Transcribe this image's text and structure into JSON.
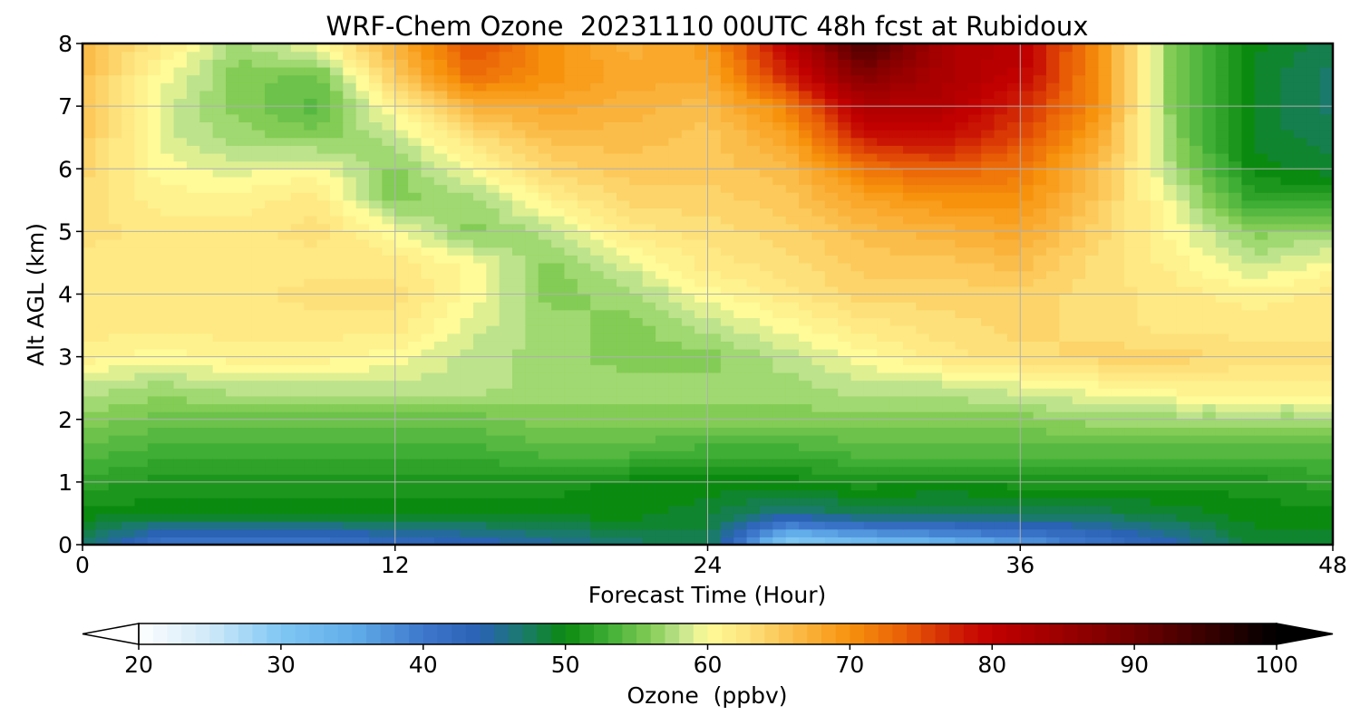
{
  "chart_data": {
    "type": "heatmap",
    "title": "WRF-Chem Ozone  20231110 00UTC 48h fcst at Rubidoux",
    "xlabel": "Forecast Time (Hour)",
    "ylabel": "Alt AGL (km)",
    "xlim": [
      0,
      48
    ],
    "ylim": [
      0,
      8
    ],
    "xticks": [
      0,
      12,
      24,
      36,
      48
    ],
    "yticks": [
      0,
      1,
      2,
      3,
      4,
      5,
      6,
      7,
      8
    ],
    "grid": true,
    "x": [
      0,
      3,
      6,
      9,
      12,
      15,
      18,
      21,
      24,
      27,
      30,
      33,
      36,
      39,
      42,
      45,
      48
    ],
    "y": [
      0,
      0.5,
      1,
      1.5,
      2,
      2.5,
      3,
      3.5,
      4,
      4.5,
      5,
      5.5,
      6,
      6.5,
      7,
      7.5,
      8
    ],
    "z": [
      [
        47,
        40,
        40,
        40,
        42,
        43,
        45,
        47,
        48,
        28,
        31,
        33,
        36,
        40,
        44,
        49,
        49
      ],
      [
        50,
        50,
        50,
        50,
        50,
        50,
        50,
        50,
        49,
        46,
        48,
        48,
        48,
        48,
        49,
        50,
        50
      ],
      [
        52,
        51,
        51,
        51,
        51,
        51,
        51,
        50,
        50,
        50,
        51,
        50,
        51,
        51,
        51,
        51,
        52
      ],
      [
        54,
        53,
        53,
        53,
        53,
        53,
        54,
        54,
        53,
        53,
        54,
        54,
        54,
        54,
        54,
        54,
        54
      ],
      [
        56,
        55,
        55,
        55,
        55,
        55,
        56,
        56,
        56,
        56,
        56,
        56,
        56,
        57,
        57,
        57,
        57
      ],
      [
        58,
        57,
        58,
        58,
        58,
        58,
        57,
        57,
        57,
        57,
        58,
        58,
        59,
        60,
        61,
        61,
        61
      ],
      [
        61,
        60,
        61,
        61,
        60,
        58,
        57,
        56,
        56,
        58,
        60,
        62,
        63,
        64,
        64,
        63,
        63
      ],
      [
        62,
        62,
        62,
        62,
        62,
        59,
        57,
        56,
        58,
        60,
        62,
        63,
        64,
        63,
        62,
        62,
        62
      ],
      [
        62,
        62,
        62,
        63,
        63,
        60,
        56,
        57,
        60,
        62,
        64,
        64,
        64,
        63,
        62,
        61,
        62
      ],
      [
        62,
        62,
        62,
        62,
        62,
        60,
        56,
        59,
        62,
        63,
        65,
        65,
        66,
        63,
        61,
        58,
        60
      ],
      [
        63,
        62,
        62,
        63,
        60,
        56,
        58,
        62,
        63,
        64,
        66,
        67,
        68,
        64,
        60,
        56,
        57
      ],
      [
        63,
        61,
        61,
        62,
        56,
        57,
        61,
        64,
        64,
        65,
        68,
        70,
        70,
        65,
        59,
        52,
        52
      ],
      [
        64,
        60,
        59,
        60,
        56,
        60,
        64,
        65,
        65,
        66,
        72,
        74,
        72,
        66,
        57,
        50,
        49
      ],
      [
        65,
        59,
        57,
        56,
        58,
        63,
        66,
        66,
        65,
        68,
        78,
        79,
        75,
        68,
        56,
        49,
        48
      ],
      [
        66,
        59,
        56,
        54,
        61,
        67,
        68,
        67,
        66,
        71,
        82,
        82,
        77,
        70,
        55,
        49,
        47
      ],
      [
        66,
        60,
        56,
        55,
        65,
        73,
        70,
        68,
        68,
        77,
        88,
        83,
        80,
        70,
        55,
        49,
        47
      ],
      [
        66,
        62,
        57,
        60,
        67,
        75,
        70,
        67,
        69,
        80,
        94,
        83,
        81,
        70,
        55,
        50,
        48
      ]
    ],
    "colorbar": {
      "label": "Ozone  (ppbv)",
      "ticks": [
        20,
        30,
        40,
        50,
        60,
        70,
        80,
        90,
        100
      ],
      "extend": "both",
      "min": 20,
      "max": 100,
      "stops": [
        [
          20,
          "#ffffff"
        ],
        [
          25,
          "#cfe9f8"
        ],
        [
          30,
          "#7fc6f3"
        ],
        [
          35,
          "#62aeea"
        ],
        [
          40,
          "#3d77cc"
        ],
        [
          44,
          "#2a62b4"
        ],
        [
          47,
          "#1a7a6c"
        ],
        [
          50,
          "#0b8a10"
        ],
        [
          53,
          "#3fae35"
        ],
        [
          56,
          "#83cc55"
        ],
        [
          58,
          "#bde38c"
        ],
        [
          60,
          "#fffb98"
        ],
        [
          63,
          "#fde07a"
        ],
        [
          66,
          "#fbbd4a"
        ],
        [
          70,
          "#f7920d"
        ],
        [
          74,
          "#e85c06"
        ],
        [
          78,
          "#cb1504"
        ],
        [
          80,
          "#c10000"
        ],
        [
          85,
          "#9b0000"
        ],
        [
          90,
          "#700000"
        ],
        [
          95,
          "#3a0000"
        ],
        [
          100,
          "#000000"
        ]
      ]
    }
  }
}
